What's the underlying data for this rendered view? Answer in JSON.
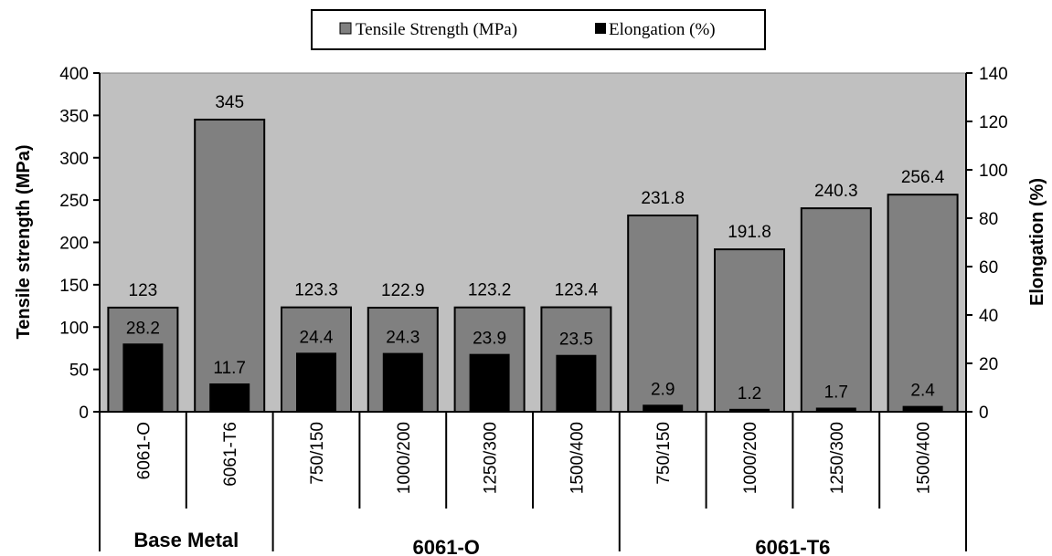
{
  "chart_data": {
    "type": "bar",
    "categories": [
      "6061-O",
      "6061-T6",
      "750/150",
      "1000/200",
      "1250/300",
      "1500/400",
      "750/150",
      "1000/200",
      "1250/300",
      "1500/400"
    ],
    "groups": [
      {
        "label": "Base Metal",
        "start": 0,
        "end": 1
      },
      {
        "label": "6061-O",
        "start": 2,
        "end": 5
      },
      {
        "label": "6061-T6",
        "start": 6,
        "end": 9
      }
    ],
    "series": [
      {
        "name": "Tensile Strength (MPa)",
        "axis": "left",
        "color": "#808080",
        "values": [
          123,
          345,
          123.3,
          122.9,
          123.2,
          123.4,
          231.8,
          191.8,
          240.3,
          256.4
        ],
        "labels": [
          "123",
          "345",
          "123.3",
          "122.9",
          "123.2",
          "123.4",
          "231.8",
          "191.8",
          "240.3",
          "256.4"
        ]
      },
      {
        "name": "Elongation (%)",
        "axis": "right",
        "color": "#000000",
        "values": [
          28.2,
          11.7,
          24.4,
          24.3,
          23.9,
          23.5,
          2.9,
          1.2,
          1.7,
          2.4
        ],
        "labels": [
          "28.2",
          "11.7",
          "24.4",
          "24.3",
          "23.9",
          "23.5",
          "2.9",
          "1.2",
          "1.7",
          "2.4"
        ]
      }
    ],
    "ylabel": "Tensile strength (MPa)",
    "y2label": "Elongation (%)",
    "ylim": [
      0,
      400
    ],
    "y2lim": [
      0,
      140
    ],
    "yticks": [
      0,
      50,
      100,
      150,
      200,
      250,
      300,
      350,
      400
    ],
    "y2ticks": [
      0,
      20,
      40,
      60,
      80,
      100,
      120,
      140
    ],
    "plot_background": "#c0c0c0",
    "grid": false,
    "legend_position": "top-center"
  }
}
